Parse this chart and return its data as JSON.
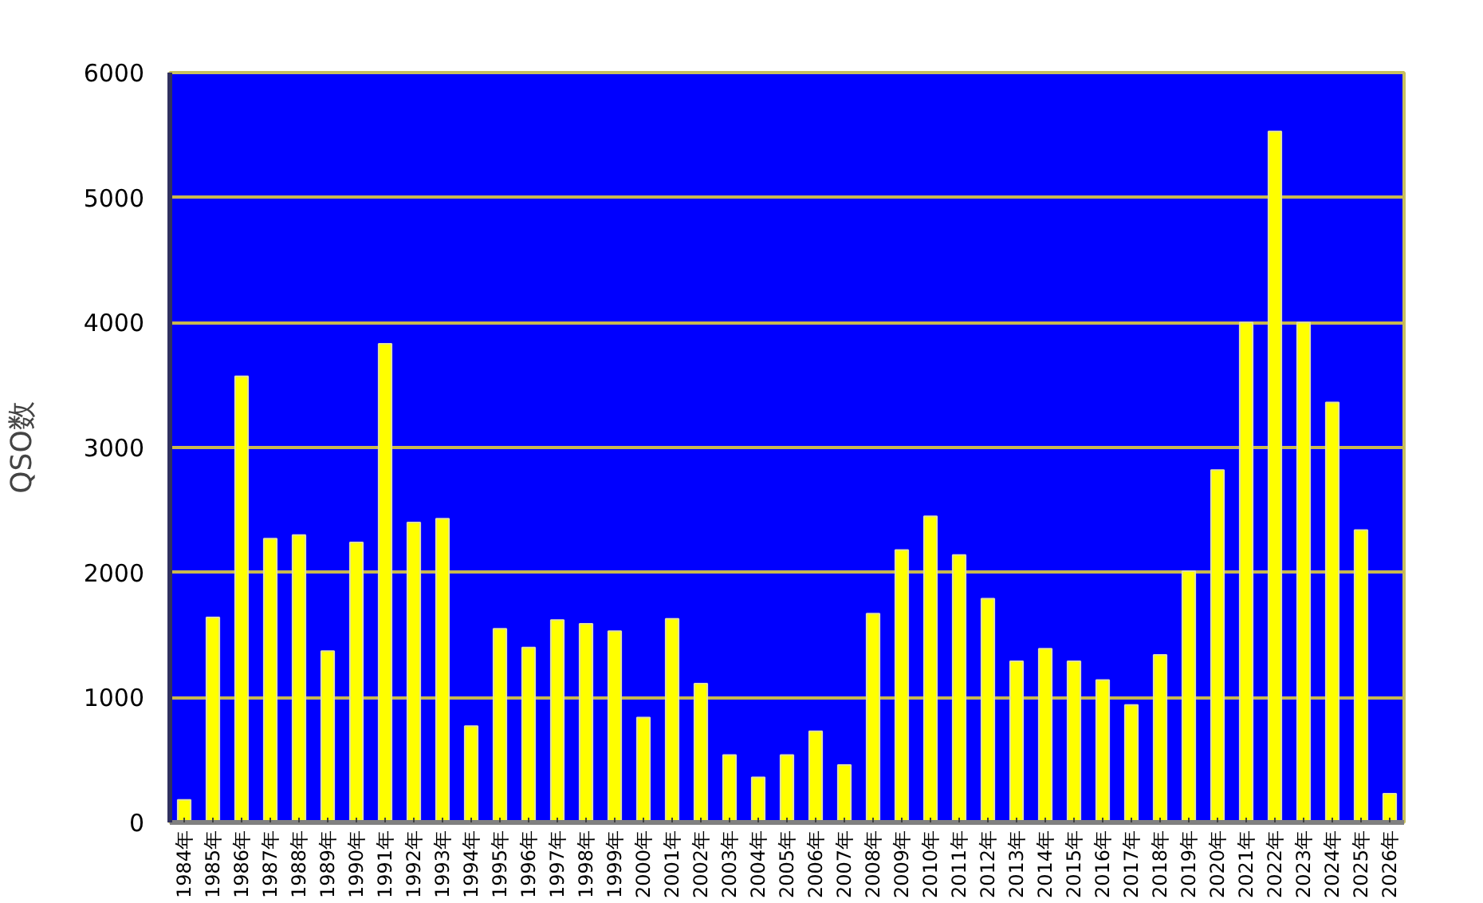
{
  "chart_data": {
    "type": "bar",
    "ylabel": "QSO数",
    "categories": [
      "1984年",
      "1985年",
      "1986年",
      "1987年",
      "1988年",
      "1989年",
      "1990年",
      "1991年",
      "1992年",
      "1993年",
      "1994年",
      "1995年",
      "1996年",
      "1997年",
      "1998年",
      "1999年",
      "2000年",
      "2001年",
      "2002年",
      "2003年",
      "2004年",
      "2005年",
      "2006年",
      "2007年",
      "2008年",
      "2009年",
      "2010年",
      "2011年",
      "2012年",
      "2013年",
      "2014年",
      "2015年",
      "2016年",
      "2017年",
      "2018年",
      "2019年",
      "2020年",
      "2021年",
      "2022年",
      "2023年",
      "2024年",
      "2025年",
      "2026年"
    ],
    "values": [
      180,
      1640,
      3570,
      2270,
      2300,
      1370,
      2240,
      3830,
      2400,
      2430,
      770,
      1550,
      1400,
      1620,
      1590,
      1530,
      840,
      1630,
      1110,
      540,
      360,
      540,
      730,
      460,
      1670,
      2180,
      2450,
      2140,
      1790,
      1290,
      1390,
      1290,
      1140,
      940,
      1340,
      2010,
      2820,
      4000,
      5530,
      4000,
      3360,
      2340,
      230
    ],
    "color": "#ffff00",
    "ylim": [
      0,
      6000
    ],
    "yticks": [
      0,
      1000,
      2000,
      3000,
      4000,
      5000,
      6000
    ],
    "grid": "y"
  }
}
